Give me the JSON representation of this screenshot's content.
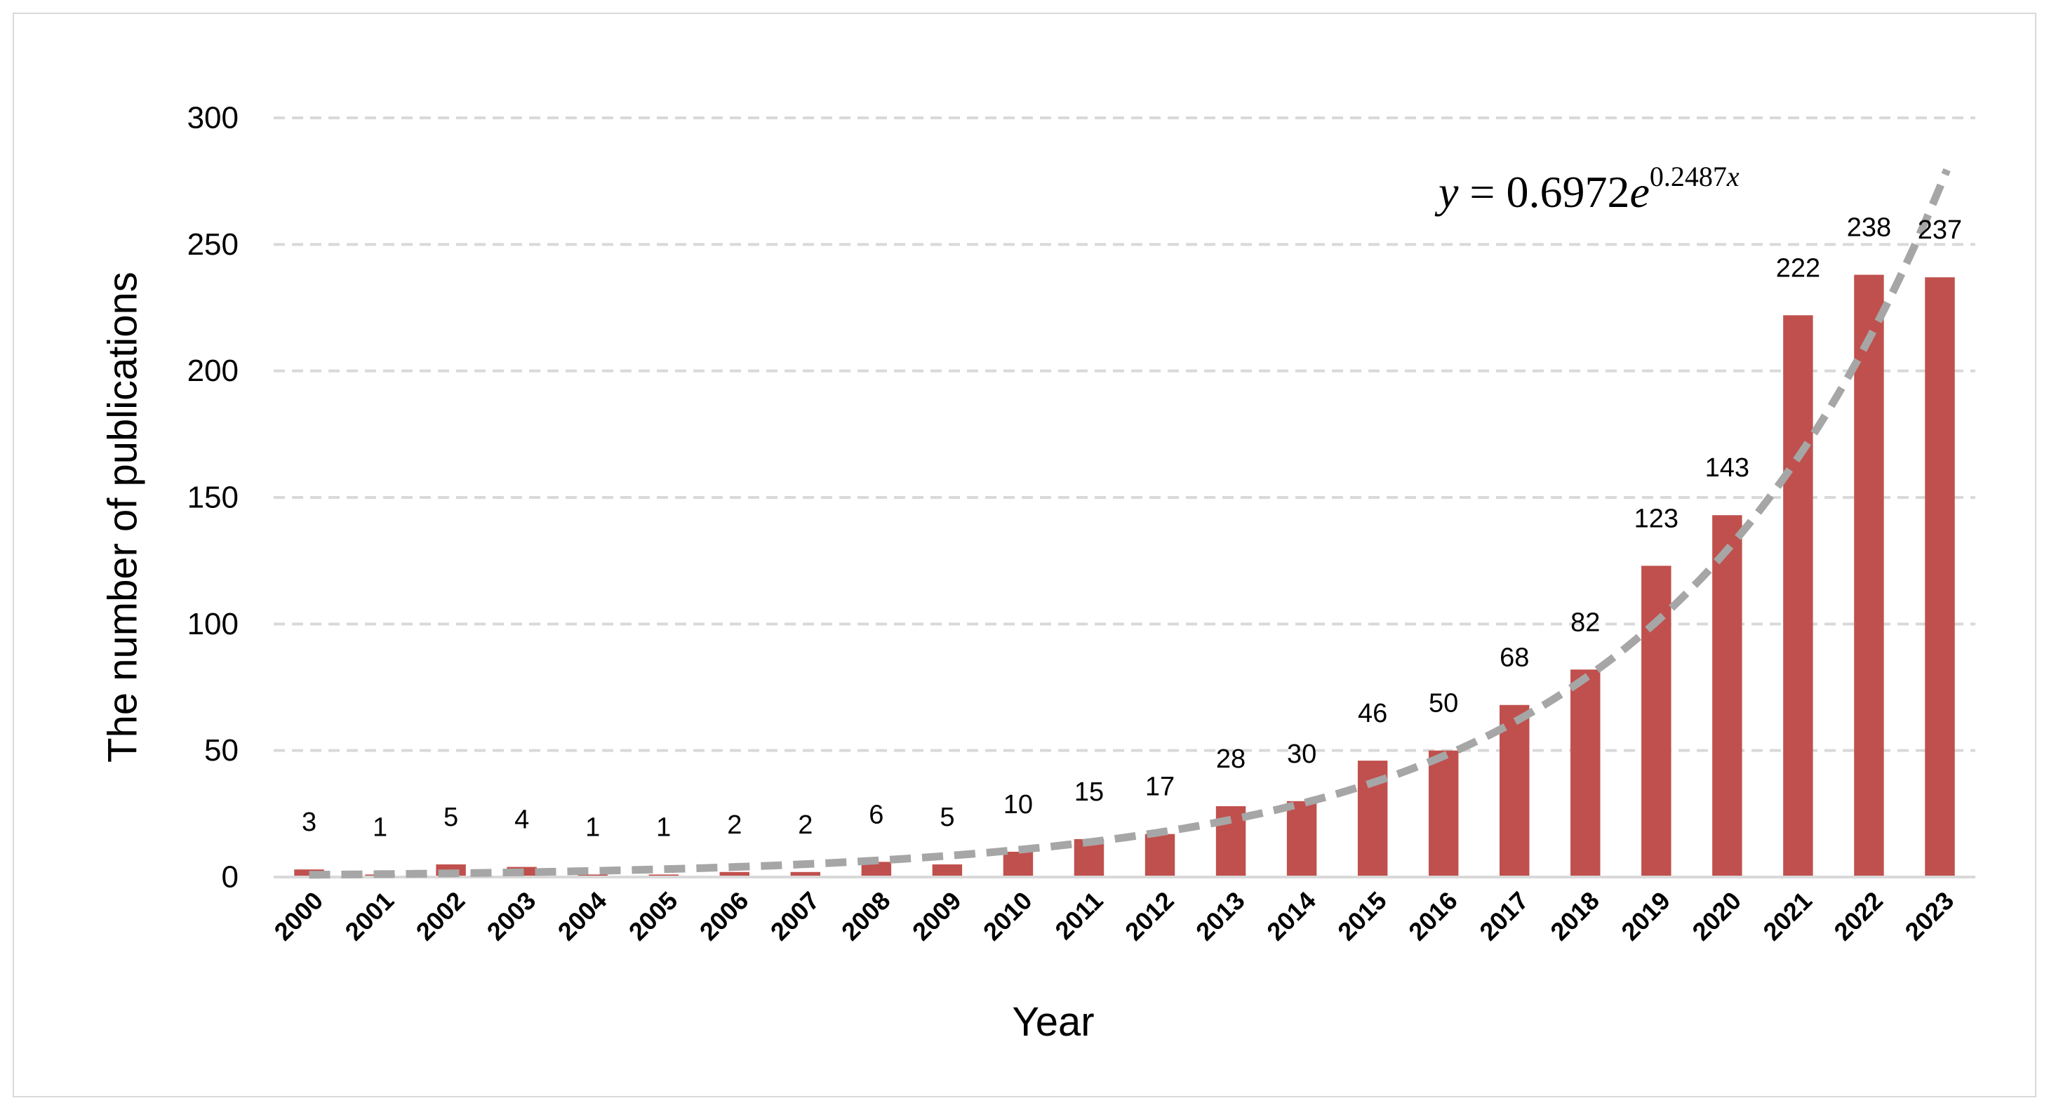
{
  "chart_data": {
    "type": "bar",
    "categories": [
      "2000",
      "2001",
      "2002",
      "2003",
      "2004",
      "2005",
      "2006",
      "2007",
      "2008",
      "2009",
      "2010",
      "2011",
      "2012",
      "2013",
      "2014",
      "2015",
      "2016",
      "2017",
      "2018",
      "2019",
      "2020",
      "2021",
      "2022",
      "2023"
    ],
    "values": [
      3,
      1,
      5,
      4,
      1,
      1,
      2,
      2,
      6,
      5,
      10,
      15,
      17,
      28,
      30,
      46,
      50,
      68,
      82,
      123,
      143,
      222,
      238,
      237
    ],
    "data_labels": [
      "3",
      "1",
      "5",
      "4",
      "1",
      "1",
      "2",
      "2",
      "6",
      "5",
      "10",
      "15",
      "17",
      "28",
      "30",
      "46",
      "50",
      "68",
      "82",
      "123",
      "143",
      "222",
      "238",
      "237"
    ],
    "title": "",
    "xlabel": "Year",
    "ylabel": "The number of publications",
    "ylim": [
      0,
      300
    ],
    "yticks": [
      0,
      50,
      100,
      150,
      200,
      250,
      300
    ],
    "ytick_labels": [
      "0",
      "50",
      "100",
      "150",
      "200",
      "250",
      "300"
    ],
    "grid": "horizontal dashed",
    "legend": "none",
    "bar_color": "#c0504d",
    "trendline": {
      "type": "exponential",
      "a": 0.6972,
      "b": 0.2487,
      "equation": {
        "lhs": "y",
        "equals": " = ",
        "coef": "0.6972",
        "base": "e",
        "exponent": "0.2487",
        "exponent_var": "x"
      },
      "color": "#a6a6a6",
      "style": "dashed"
    },
    "colors": {
      "grid": "#d9d9d9",
      "axis": "#d9d9d9"
    }
  }
}
